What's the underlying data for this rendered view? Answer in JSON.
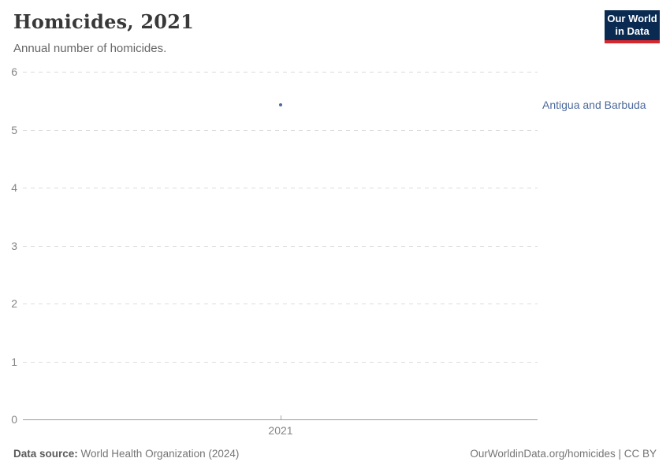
{
  "header": {
    "title": "Homicides, 2021",
    "subtitle": "Annual number of homicides.",
    "logo": {
      "line1": "Our World",
      "line2": "in Data",
      "bg_color": "#0a2a52",
      "accent_color": "#d7262c"
    }
  },
  "chart_data": {
    "type": "scatter",
    "title": "Homicides, 2021",
    "subtitle": "Annual number of homicides.",
    "xlabel": "",
    "ylabel": "",
    "x": [
      2021
    ],
    "xtick_labels": [
      "2021"
    ],
    "yticks": [
      0,
      1,
      2,
      3,
      4,
      5,
      6
    ],
    "ylim": [
      0,
      6
    ],
    "grid": true,
    "legend_position": "right-of-point",
    "series": [
      {
        "name": "Antigua and Barbuda",
        "x": 2021,
        "y": 5.43,
        "color": "#4C6A9C"
      }
    ]
  },
  "footer": {
    "source_label": "Data source:",
    "source_text": " World Health Organization (2024)",
    "credit": "OurWorldinData.org/homicides | CC BY"
  }
}
